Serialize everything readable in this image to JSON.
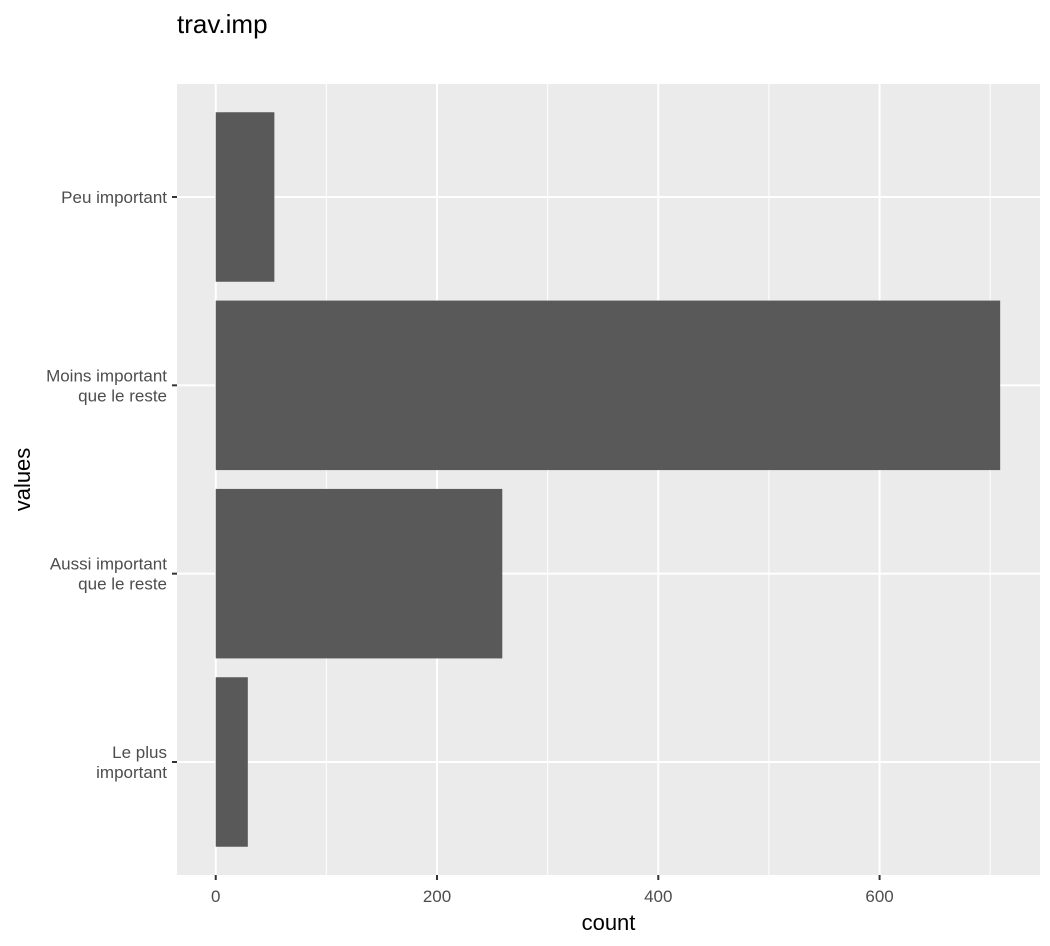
{
  "chart_data": {
    "type": "bar",
    "orientation": "horizontal",
    "title": "trav.imp",
    "xlabel": "count",
    "ylabel": "values",
    "categories": [
      "Le plus\nimportant",
      "Aussi important\nque le reste",
      "Moins important\nque le reste",
      "Peu important"
    ],
    "values": [
      29,
      259,
      709,
      53
    ],
    "xlim": [
      -35,
      745
    ],
    "xticks": [
      0,
      200,
      400,
      600
    ],
    "grid": true,
    "legend": "none",
    "colors": {
      "panel_background": "#ebebeb",
      "grid_line": "#ffffff",
      "bar_fill": "#595959",
      "tick_label": "#4d4d4d",
      "tick_mark": "#333333",
      "text": "#000000"
    }
  }
}
